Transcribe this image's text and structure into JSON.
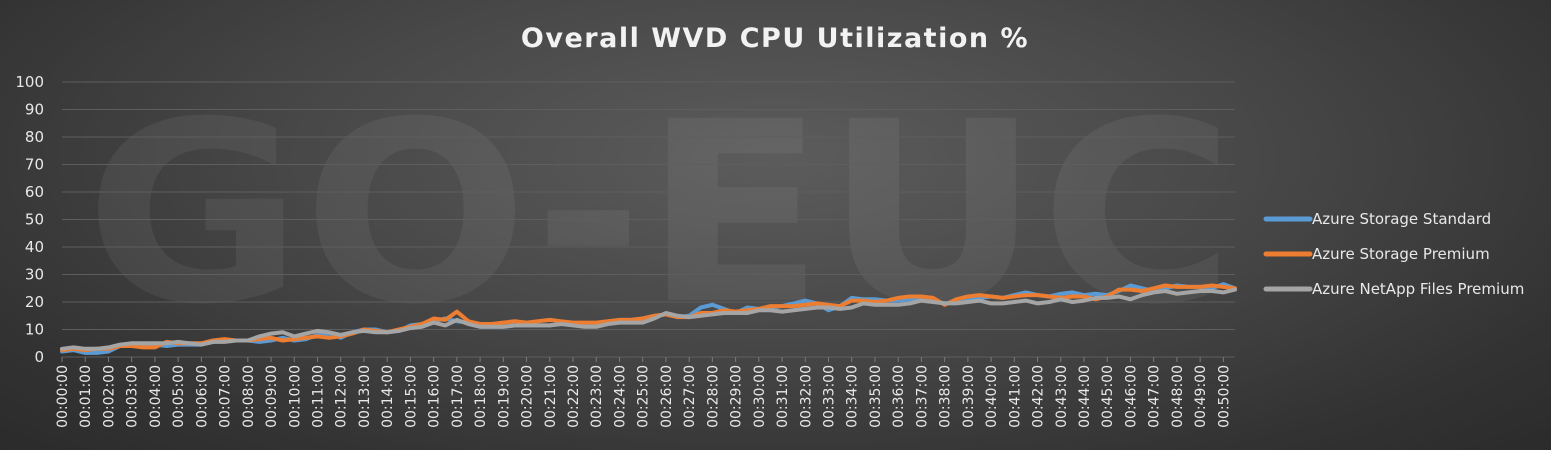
{
  "watermark_text": "GO-EUC",
  "chart_data": {
    "type": "line",
    "title": "Overall WVD CPU Utilization %",
    "xlabel": "",
    "ylabel": "",
    "ylim": [
      0,
      100
    ],
    "yticks": [
      0,
      10,
      20,
      30,
      40,
      50,
      60,
      70,
      80,
      90,
      100
    ],
    "xlim_minutes": [
      0,
      50.5
    ],
    "xticks": [
      "00:00:00",
      "00:01:00",
      "00:02:00",
      "00:03:00",
      "00:04:00",
      "00:05:00",
      "00:06:00",
      "00:07:00",
      "00:08:00",
      "00:09:00",
      "00:10:00",
      "00:11:00",
      "00:12:00",
      "00:13:00",
      "00:14:00",
      "00:15:00",
      "00:16:00",
      "00:17:00",
      "00:18:00",
      "00:19:00",
      "00:20:00",
      "00:21:00",
      "00:22:00",
      "00:23:00",
      "00:24:00",
      "00:25:00",
      "00:26:00",
      "00:27:00",
      "00:28:00",
      "00:29:00",
      "00:30:00",
      "00:31:00",
      "00:32:00",
      "00:33:00",
      "00:34:00",
      "00:35:00",
      "00:36:00",
      "00:37:00",
      "00:38:00",
      "00:39:00",
      "00:40:00",
      "00:41:00",
      "00:42:00",
      "00:43:00",
      "00:44:00",
      "00:45:00",
      "00:46:00",
      "00:47:00",
      "00:48:00",
      "00:49:00",
      "00:50:00"
    ],
    "grid": true,
    "legend_position": "right",
    "x": [
      "00:00:00",
      "00:00:30",
      "00:01:00",
      "00:01:30",
      "00:02:00",
      "00:02:30",
      "00:03:00",
      "00:03:30",
      "00:04:00",
      "00:04:30",
      "00:05:00",
      "00:05:30",
      "00:06:00",
      "00:06:30",
      "00:07:00",
      "00:07:30",
      "00:08:00",
      "00:08:30",
      "00:09:00",
      "00:09:30",
      "00:10:00",
      "00:10:30",
      "00:11:00",
      "00:11:30",
      "00:12:00",
      "00:12:30",
      "00:13:00",
      "00:13:30",
      "00:14:00",
      "00:14:30",
      "00:15:00",
      "00:15:30",
      "00:16:00",
      "00:16:30",
      "00:17:00",
      "00:17:30",
      "00:18:00",
      "00:18:30",
      "00:19:00",
      "00:19:30",
      "00:20:00",
      "00:20:30",
      "00:21:00",
      "00:21:30",
      "00:22:00",
      "00:22:30",
      "00:23:00",
      "00:23:30",
      "00:24:00",
      "00:24:30",
      "00:25:00",
      "00:25:30",
      "00:26:00",
      "00:26:30",
      "00:27:00",
      "00:27:30",
      "00:28:00",
      "00:28:30",
      "00:29:00",
      "00:29:30",
      "00:30:00",
      "00:30:30",
      "00:31:00",
      "00:31:30",
      "00:32:00",
      "00:32:30",
      "00:33:00",
      "00:33:30",
      "00:34:00",
      "00:34:30",
      "00:35:00",
      "00:35:30",
      "00:36:00",
      "00:36:30",
      "00:37:00",
      "00:37:30",
      "00:38:00",
      "00:38:30",
      "00:39:00",
      "00:39:30",
      "00:40:00",
      "00:40:30",
      "00:41:00",
      "00:41:30",
      "00:42:00",
      "00:42:30",
      "00:43:00",
      "00:43:30",
      "00:44:00",
      "00:44:30",
      "00:45:00",
      "00:45:30",
      "00:46:00",
      "00:46:30",
      "00:47:00",
      "00:47:30",
      "00:48:00",
      "00:48:30",
      "00:49:00",
      "00:49:30",
      "00:50:00",
      "00:50:30"
    ],
    "series": [
      {
        "name": "Azure Storage Standard",
        "color": "#5b9bd5",
        "values": [
          2,
          2.5,
          1.5,
          1.5,
          2,
          4,
          4.5,
          4.5,
          4.5,
          4,
          4.5,
          4.5,
          4.5,
          5.5,
          6,
          6,
          6,
          5.5,
          6,
          7,
          6,
          6.5,
          8,
          8.5,
          7,
          9,
          10,
          10,
          9,
          9.5,
          11.5,
          12,
          13,
          14,
          13,
          12.5,
          11,
          11,
          11,
          11.5,
          11.5,
          11.5,
          11.5,
          12,
          12,
          12,
          12,
          12.5,
          13.5,
          13.5,
          14,
          15,
          15.5,
          14.5,
          15,
          18,
          19,
          17.5,
          16,
          18,
          17.5,
          18,
          18.5,
          19.5,
          20.5,
          19.5,
          17,
          18.5,
          21.5,
          21,
          21,
          20.5,
          20.5,
          21,
          21,
          20.5,
          19.5,
          20,
          21,
          21.5,
          22,
          21.5,
          22.5,
          23.5,
          22.5,
          22,
          23,
          23.5,
          22.5,
          23,
          22.5,
          24,
          26,
          25,
          24,
          25,
          26,
          25.5,
          25.5,
          25,
          26.5,
          25
        ]
      },
      {
        "name": "Azure Storage Premium",
        "color": "#ed7d31",
        "values": [
          2.5,
          3,
          2.5,
          3,
          3,
          4,
          4,
          3.5,
          3.5,
          5.5,
          5,
          5,
          5,
          6,
          6.5,
          6,
          6,
          6.5,
          7,
          6,
          6.5,
          7,
          7.5,
          7,
          7.5,
          8.5,
          10,
          9.5,
          9,
          10,
          11,
          12,
          14,
          13.5,
          16.5,
          13,
          12,
          12,
          12.5,
          13,
          12.5,
          13,
          13.5,
          13,
          12.5,
          12.5,
          12.5,
          13,
          13.5,
          13.5,
          14,
          15,
          15.5,
          14.5,
          14.5,
          16,
          16,
          17,
          16.5,
          17,
          17.5,
          18.5,
          18.5,
          18.5,
          19,
          19.5,
          19,
          18.5,
          20.5,
          20.5,
          20,
          20.5,
          21.5,
          22,
          22,
          21.5,
          19,
          21,
          22,
          22.5,
          22,
          21.5,
          22,
          22.5,
          22.5,
          22,
          21.5,
          22,
          22,
          21,
          22,
          24.5,
          24.5,
          24,
          25,
          26,
          25.5,
          25.5,
          25.5,
          26,
          25.5,
          25
        ]
      },
      {
        "name": "Azure NetApp Files Premium",
        "color": "#a5a5a5",
        "values": [
          3,
          3.5,
          3,
          3,
          3.5,
          4.5,
          5,
          5,
          5,
          5,
          5.5,
          5,
          4.5,
          5.5,
          5.5,
          6,
          6,
          7.5,
          8.5,
          9,
          7.5,
          8.5,
          9.5,
          9,
          8,
          9,
          9.5,
          9,
          9,
          9.5,
          10.5,
          11,
          12.5,
          11.5,
          13.5,
          12,
          11,
          11,
          11,
          11.5,
          11.5,
          11.5,
          11.5,
          12,
          11.5,
          11,
          11,
          12,
          12.5,
          12.5,
          12.5,
          14,
          16,
          15,
          14.5,
          15,
          15.5,
          16,
          16,
          16,
          17,
          17,
          16.5,
          17,
          17.5,
          18,
          18,
          17.5,
          18,
          19.5,
          19,
          19,
          19,
          19.5,
          20.5,
          20,
          19.5,
          19.5,
          20,
          20.5,
          19.5,
          19.5,
          20,
          20.5,
          19.5,
          20,
          21,
          20,
          20.5,
          21.5,
          21.5,
          22,
          21,
          22.5,
          23.5,
          24,
          23,
          23.5,
          24,
          24,
          23.5,
          24.5
        ]
      }
    ]
  }
}
